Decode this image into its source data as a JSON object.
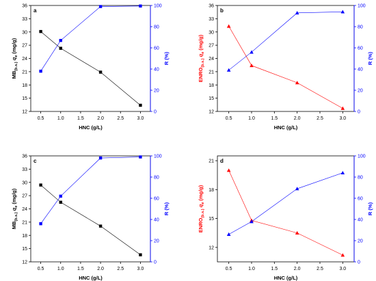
{
  "chart_data": [
    {
      "type": "line",
      "panel": "a",
      "xlabel": "HNC (g/L)",
      "ylabel_left": {
        "base": "MB",
        "sub1": "(b.s.)",
        "mid": " q",
        "sub2": "e",
        "unit": " (mg/g)"
      },
      "ylabel_right": "R (%)",
      "xlim": [
        0.25,
        3.25
      ],
      "xticks": [
        "0.5",
        "1.0",
        "1.5",
        "2.0",
        "2.5",
        "3.0"
      ],
      "ylim_left": [
        12,
        36
      ],
      "yticks_left": [
        "12",
        "15",
        "18",
        "21",
        "24",
        "27",
        "30",
        "33",
        "36"
      ],
      "ylim_right": [
        0,
        100
      ],
      "yticks_right": [
        "0",
        "20",
        "40",
        "60",
        "80",
        "100"
      ],
      "left_color": "#000000",
      "right_color": "#0000ff",
      "series": [
        {
          "axis": "left",
          "marker": "square",
          "color": "#000000",
          "x": [
            0.5,
            1.0,
            2.0,
            3.0
          ],
          "y": [
            30.1,
            26.3,
            20.9,
            13.4
          ]
        },
        {
          "axis": "right",
          "marker": "square",
          "color": "#0000ff",
          "x": [
            0.5,
            1.0,
            2.0,
            3.0
          ],
          "y": [
            38,
            67,
            99,
            99.5
          ]
        }
      ]
    },
    {
      "type": "line",
      "panel": "b",
      "xlabel": "HNC (g/L)",
      "ylabel_left": {
        "base": "ENRO",
        "sub1": "(b.s.)",
        "mid": " q",
        "sub2": "e",
        "unit": " (mg/g)"
      },
      "ylabel_right": "R (%)",
      "xlim": [
        0.25,
        3.25
      ],
      "xticks": [
        "0.5",
        "1.0",
        "1.5",
        "2.0",
        "2.5",
        "3.0"
      ],
      "ylim_left": [
        12,
        36
      ],
      "yticks_left": [
        "12",
        "15",
        "18",
        "21",
        "24",
        "27",
        "30",
        "33",
        "36"
      ],
      "ylim_right": [
        0,
        100
      ],
      "yticks_right": [
        "0",
        "20",
        "40",
        "60",
        "80",
        "100"
      ],
      "left_color": "#ff0000",
      "right_color": "#0000ff",
      "series": [
        {
          "axis": "left",
          "marker": "triangle",
          "color": "#ff0000",
          "x": [
            0.5,
            1.0,
            2.0,
            3.0
          ],
          "y": [
            31.3,
            22.4,
            18.5,
            12.7
          ]
        },
        {
          "axis": "right",
          "marker": "triangle",
          "color": "#0000ff",
          "x": [
            0.5,
            1.0,
            2.0,
            3.0
          ],
          "y": [
            39,
            56,
            93,
            94
          ]
        }
      ]
    },
    {
      "type": "line",
      "panel": "c",
      "xlabel": "HNC (g/L)",
      "ylabel_left": {
        "base": "MB",
        "sub1": "(b.s.)",
        "mid": " q",
        "sub2": "e",
        "unit": " (mg/g)"
      },
      "ylabel_right": "R (%)",
      "xlim": [
        0.25,
        3.25
      ],
      "xticks": [
        "0.5",
        "1.0",
        "1.5",
        "2.0",
        "2.5",
        "3.0"
      ],
      "ylim_left": [
        12,
        36
      ],
      "yticks_left": [
        "12",
        "15",
        "18",
        "21",
        "24",
        "27",
        "30",
        "33",
        "36"
      ],
      "ylim_right": [
        0,
        100
      ],
      "yticks_right": [
        "0",
        "20",
        "40",
        "60",
        "80",
        "100"
      ],
      "left_color": "#000000",
      "right_color": "#0000ff",
      "series": [
        {
          "axis": "left",
          "marker": "square",
          "color": "#000000",
          "x": [
            0.5,
            1.0,
            2.0,
            3.0
          ],
          "y": [
            29.4,
            25.5,
            20.1,
            13.6
          ]
        },
        {
          "axis": "right",
          "marker": "square",
          "color": "#0000ff",
          "x": [
            0.5,
            1.0,
            2.0,
            3.0
          ],
          "y": [
            36,
            62,
            98,
            99
          ]
        }
      ]
    },
    {
      "type": "line",
      "panel": "d",
      "xlabel": "HNC (g/L)",
      "ylabel_left": {
        "base": "ENRO",
        "sub1": "(b.s.)",
        "mid": " q",
        "sub2": "e",
        "unit": " (mg/g)"
      },
      "ylabel_right": "R (%)",
      "xlim": [
        0.25,
        3.25
      ],
      "xticks": [
        "0.5",
        "1.0",
        "1.5",
        "2.0",
        "2.5",
        "3.0"
      ],
      "ylim_left": [
        10.5,
        21.5
      ],
      "yticks_left": [
        "12",
        "15",
        "18",
        "21"
      ],
      "ylim_right": [
        0,
        100
      ],
      "yticks_right": [
        "0",
        "20",
        "40",
        "60",
        "80",
        "100"
      ],
      "left_color": "#ff0000",
      "right_color": "#0000ff",
      "series": [
        {
          "axis": "left",
          "marker": "triangle",
          "color": "#ff0000",
          "x": [
            0.5,
            1.0,
            2.0,
            3.0
          ],
          "y": [
            20.0,
            14.8,
            13.5,
            11.2
          ]
        },
        {
          "axis": "right",
          "marker": "triangle",
          "color": "#0000ff",
          "x": [
            0.5,
            1.0,
            2.0,
            3.0
          ],
          "y": [
            26,
            38,
            69,
            84
          ]
        }
      ]
    }
  ]
}
